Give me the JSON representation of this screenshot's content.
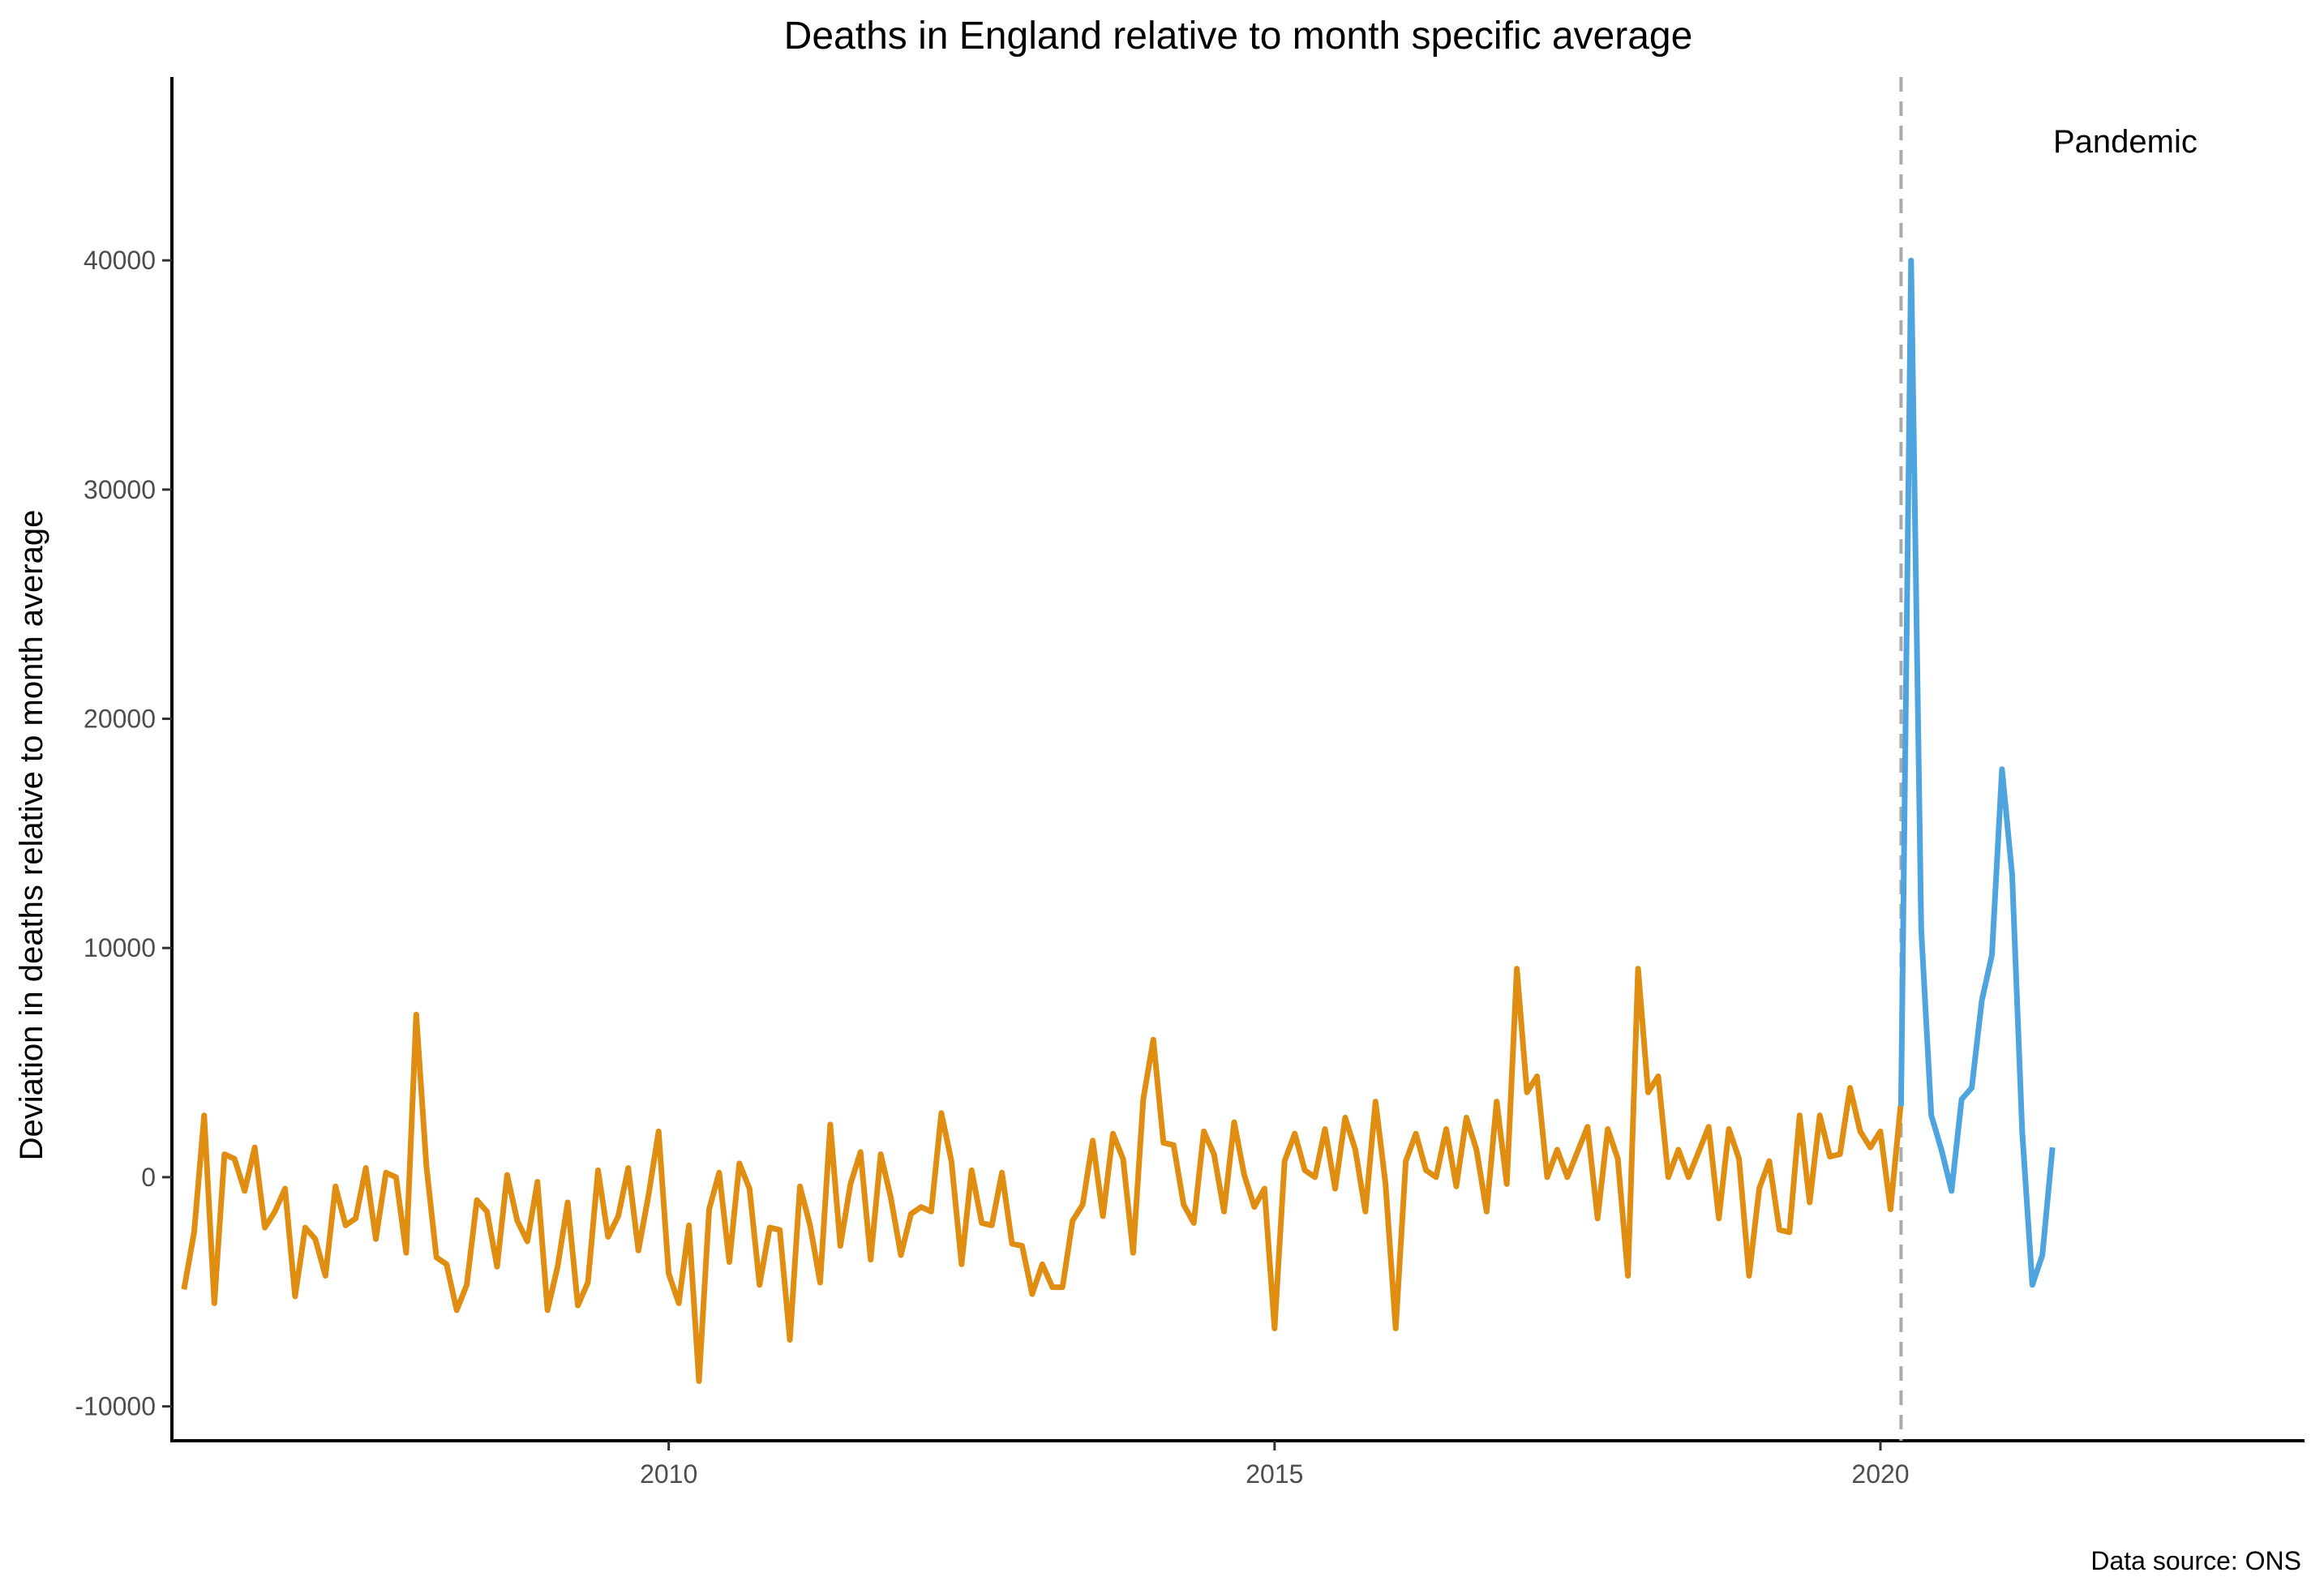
{
  "chart_data": {
    "type": "line",
    "title": "Deaths in England relative to month specific average",
    "ylabel": "Deviation in deaths relative to month average",
    "xlabel": "",
    "caption": "Data source: ONS",
    "annotation": "Pandemic",
    "vline_x": 2020.17,
    "xlim": [
      2005.9,
      2023.5
    ],
    "ylim": [
      -11500,
      48000
    ],
    "x_ticks": [
      2010,
      2015,
      2020
    ],
    "x_tick_labels": [
      "2010",
      "2015",
      "2020"
    ],
    "y_ticks": [
      -10000,
      0,
      10000,
      20000,
      30000,
      40000
    ],
    "y_tick_labels": [
      "-10000",
      "0",
      "10000",
      "20000",
      "30000",
      "40000"
    ],
    "grid": false,
    "colors": {
      "pre": "#E08E12",
      "pandemic": "#4EA4DE",
      "vline": "#AAAAAA"
    },
    "series": [
      {
        "key": "pre",
        "start": 2006.0,
        "step": 0.08333,
        "values": [
          -4900,
          -2400,
          2700,
          -5500,
          1000,
          800,
          -600,
          1300,
          -2200,
          -1500,
          -500,
          -5200,
          -2200,
          -2700,
          -4300,
          -400,
          -2100,
          -1800,
          400,
          -2700,
          200,
          0,
          -3300,
          7100,
          500,
          -3500,
          -3800,
          -5800,
          -4700,
          -1000,
          -1500,
          -3900,
          100,
          -1900,
          -2800,
          -200,
          -5800,
          -3900,
          -1100,
          -5600,
          -4600,
          300,
          -2600,
          -1700,
          400,
          -3200,
          -800,
          2000,
          -4200,
          -5500,
          -2100,
          -8900,
          -1400,
          200,
          -3700,
          600,
          -500,
          -4700,
          -2200,
          -2300,
          -7100,
          -400,
          -2100,
          -4600,
          2300,
          -3000,
          -300,
          1100,
          -3600,
          1000,
          -900,
          -3400,
          -1600,
          -1300,
          -1500,
          2800,
          700,
          -3800,
          300,
          -2000,
          -2100,
          200,
          -2900,
          -3000,
          -5100,
          -3800,
          -4800,
          -4800,
          -1900,
          -1200,
          1600,
          -1700,
          1900,
          800,
          -3300,
          3400,
          6000,
          1500,
          1400,
          -1200,
          -2000,
          2000,
          1000,
          -1500,
          2400,
          100,
          -1300,
          -500,
          -6600,
          700,
          1900,
          300,
          0,
          2100,
          -500,
          2600,
          1200,
          -1500,
          3300,
          -300,
          -6600,
          700,
          1900,
          300,
          0,
          2100,
          -400,
          2600,
          1200,
          -1500,
          3300,
          -300,
          9100,
          3700,
          4400,
          0,
          1200,
          0,
          1100,
          2200,
          -1800,
          2100,
          800,
          -4300,
          9100,
          3700,
          4400,
          0,
          1200,
          0,
          1100,
          2200,
          -1800,
          2100,
          800,
          -4300,
          -500,
          700,
          -2300,
          -2400,
          2700,
          -1100,
          2700,
          900,
          1000,
          3900,
          2000,
          1300,
          2000,
          -1400,
          3100
        ]
      },
      {
        "key": "pandemic",
        "start": 2020.17,
        "step": 0.08333,
        "values": [
          3100,
          40000,
          10800,
          2700,
          1200,
          -600,
          3400,
          3900,
          7700,
          9700,
          17800,
          13200,
          2000,
          -4700,
          -3400,
          1300
        ]
      }
    ]
  }
}
